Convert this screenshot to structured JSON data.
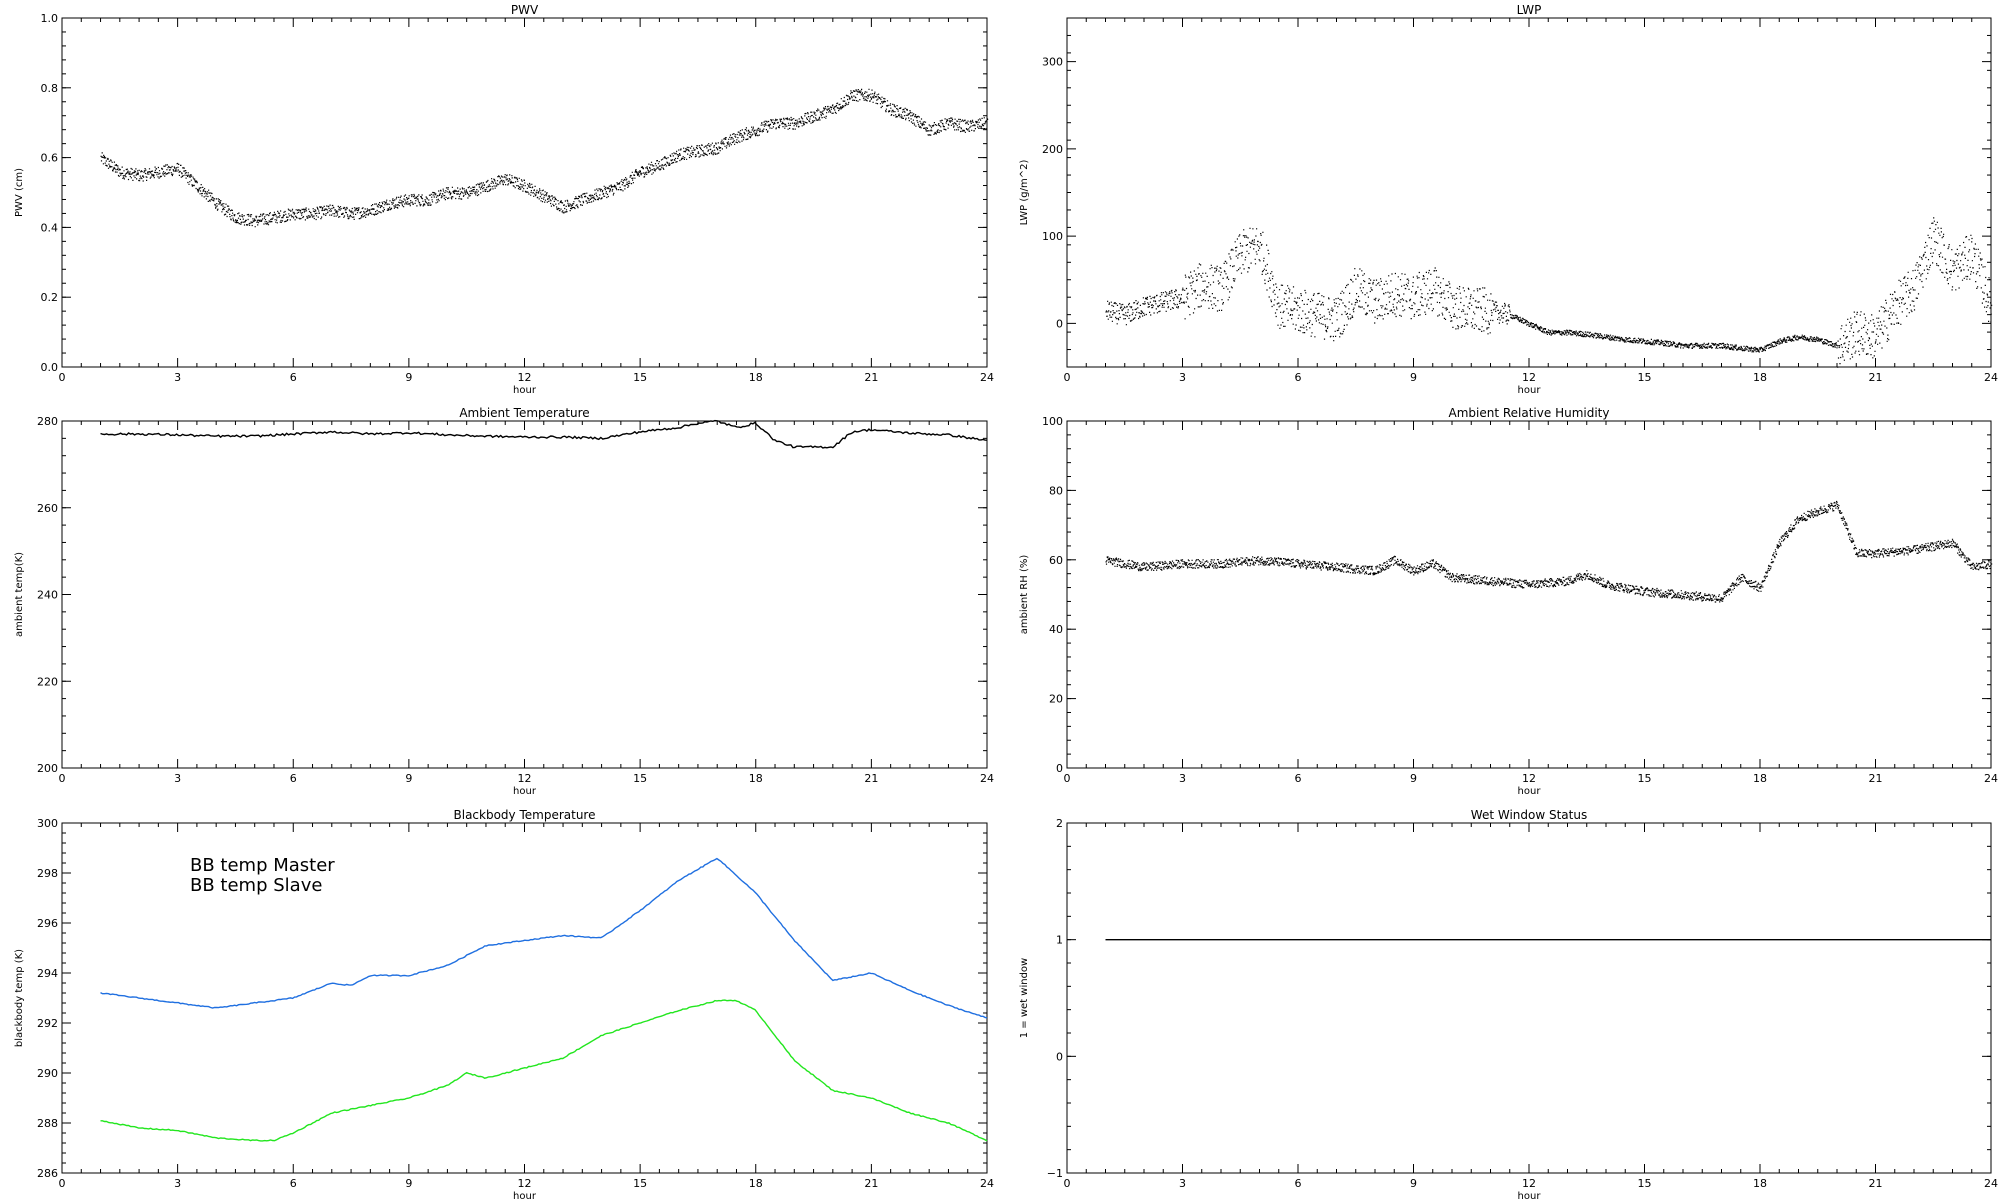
{
  "chart_data": [
    {
      "type": "line",
      "title": "PWV",
      "xlabel": "hour",
      "ylabel": "PWV (cm)",
      "xlim": [
        0,
        24
      ],
      "ylim": [
        0.0,
        1.0
      ],
      "xticks": [
        "0",
        "3",
        "6",
        "9",
        "12",
        "15",
        "18",
        "21",
        "24"
      ],
      "yticks": [
        "0.0",
        "0.2",
        "0.4",
        "0.6",
        "0.8",
        "1.0"
      ],
      "grid": false,
      "series": [
        {
          "color": "#000000",
          "style": "dense-points",
          "x": [
            1,
            1.5,
            2,
            2.5,
            3,
            3.5,
            4,
            4.5,
            5,
            5.5,
            6,
            6.5,
            7,
            7.5,
            8,
            8.5,
            9,
            9.5,
            10,
            10.5,
            11,
            11.5,
            12,
            12.5,
            13,
            13.5,
            14,
            14.5,
            15,
            15.5,
            16,
            16.5,
            17,
            17.5,
            18,
            18.5,
            19,
            19.5,
            20,
            20.5,
            21,
            21.5,
            22,
            22.5,
            23,
            23.5,
            24
          ],
          "y": [
            0.6,
            0.56,
            0.55,
            0.56,
            0.57,
            0.52,
            0.47,
            0.43,
            0.42,
            0.43,
            0.44,
            0.44,
            0.45,
            0.44,
            0.45,
            0.47,
            0.48,
            0.48,
            0.5,
            0.5,
            0.52,
            0.54,
            0.52,
            0.49,
            0.46,
            0.48,
            0.5,
            0.52,
            0.56,
            0.58,
            0.61,
            0.62,
            0.63,
            0.66,
            0.68,
            0.7,
            0.7,
            0.72,
            0.74,
            0.78,
            0.78,
            0.74,
            0.72,
            0.68,
            0.7,
            0.69,
            0.7
          ]
        }
      ]
    },
    {
      "type": "line",
      "title": "LWP",
      "xlabel": "hour",
      "ylabel": "LWP (g/m^2)",
      "xlim": [
        0,
        24
      ],
      "ylim": [
        -50,
        350
      ],
      "xticks": [
        "0",
        "3",
        "6",
        "9",
        "12",
        "15",
        "18",
        "21",
        "24"
      ],
      "yticks": [
        "0",
        "100",
        "200",
        "300"
      ],
      "grid": false,
      "series": [
        {
          "color": "#000000",
          "style": "dense-points",
          "x": [
            1,
            1.5,
            2,
            2.5,
            3,
            3.5,
            4,
            4.5,
            5,
            5.5,
            6,
            6.5,
            7,
            7.5,
            8,
            8.5,
            9,
            9.5,
            10,
            10.5,
            11,
            11.5,
            12,
            12.5,
            13,
            13.5,
            14,
            14.5,
            15,
            15.5,
            16,
            16.5,
            17,
            17.5,
            18,
            18.5,
            19,
            19.5,
            20,
            20.5,
            21,
            21.5,
            22,
            22.5,
            23,
            23.5,
            24
          ],
          "y": [
            15,
            10,
            20,
            25,
            30,
            45,
            40,
            80,
            90,
            20,
            15,
            10,
            5,
            40,
            25,
            35,
            30,
            40,
            20,
            15,
            15,
            10,
            0,
            -10,
            -10,
            -12,
            -15,
            -18,
            -20,
            -22,
            -25,
            -25,
            -25,
            -28,
            -30,
            -20,
            -15,
            -18,
            -25,
            -10,
            -15,
            20,
            40,
            100,
            60,
            80,
            20
          ]
        }
      ]
    },
    {
      "type": "line",
      "title": "Ambient Temperature",
      "xlabel": "hour",
      "ylabel": "ambient temp(K)",
      "xlim": [
        0,
        24
      ],
      "ylim": [
        200,
        280
      ],
      "xticks": [
        "0",
        "3",
        "6",
        "9",
        "12",
        "15",
        "18",
        "21",
        "24"
      ],
      "yticks": [
        "200",
        "220",
        "240",
        "260",
        "280"
      ],
      "grid": false,
      "series": [
        {
          "color": "#000000",
          "style": "line",
          "x": [
            1,
            2,
            3,
            4,
            5,
            6,
            7,
            8,
            9,
            10,
            11,
            12,
            13,
            14,
            15,
            16,
            16.5,
            17,
            17.5,
            18,
            18.5,
            19,
            20,
            20.5,
            21,
            22,
            23,
            24
          ],
          "y": [
            277,
            277,
            276.8,
            276.5,
            276.5,
            277,
            277.5,
            277,
            277.3,
            276.8,
            276.5,
            276.3,
            276.3,
            276,
            277.5,
            278.5,
            279.5,
            280,
            278.5,
            279.5,
            275.5,
            274,
            274,
            277.5,
            278,
            277.2,
            276.8,
            275.5
          ]
        }
      ]
    },
    {
      "type": "line",
      "title": "Ambient Relative Humidity",
      "xlabel": "hour",
      "ylabel": "ambient RH (%)",
      "xlim": [
        0,
        24
      ],
      "ylim": [
        0,
        100
      ],
      "xticks": [
        "0",
        "3",
        "6",
        "9",
        "12",
        "15",
        "18",
        "21",
        "24"
      ],
      "yticks": [
        "0",
        "20",
        "40",
        "60",
        "80",
        "100"
      ],
      "grid": false,
      "series": [
        {
          "color": "#000000",
          "style": "dense-points",
          "x": [
            1,
            2,
            3,
            4,
            5,
            6,
            7,
            8,
            8.5,
            9,
            9.5,
            10,
            11,
            12,
            13,
            13.5,
            14,
            15,
            16,
            17,
            17.5,
            18,
            18.5,
            19,
            19.5,
            20,
            20.5,
            21,
            22,
            23,
            23.5,
            24
          ],
          "y": [
            60,
            58,
            59,
            59,
            60,
            59,
            58,
            57,
            60,
            57,
            59,
            55,
            54,
            53,
            54,
            56,
            53,
            51,
            50,
            49,
            55,
            52,
            65,
            72,
            74,
            76,
            62,
            62,
            63,
            65,
            58,
            59
          ]
        }
      ]
    },
    {
      "type": "line",
      "title": "Blackbody Temperature",
      "xlabel": "hour",
      "ylabel": "blackbody temp (K)",
      "xlim": [
        0,
        24
      ],
      "ylim": [
        286,
        300
      ],
      "xticks": [
        "0",
        "3",
        "6",
        "9",
        "12",
        "15",
        "18",
        "21",
        "24"
      ],
      "yticks": [
        "286",
        "288",
        "290",
        "292",
        "294",
        "296",
        "298",
        "300"
      ],
      "grid": false,
      "legend": "top-left",
      "series": [
        {
          "name": "BB temp Master",
          "color": "#1f6fe0",
          "style": "line",
          "x": [
            1,
            2,
            3,
            4,
            5,
            6,
            7,
            7.5,
            8,
            9,
            10,
            11,
            12,
            13,
            14,
            15,
            16,
            17,
            18,
            19,
            20,
            21,
            22,
            23,
            24
          ],
          "y": [
            293.2,
            293.0,
            292.8,
            292.6,
            292.8,
            293.0,
            293.6,
            293.5,
            293.9,
            293.9,
            294.3,
            295.1,
            295.3,
            295.5,
            295.4,
            296.5,
            297.7,
            298.6,
            297.2,
            295.3,
            293.7,
            294.0,
            293.3,
            292.7,
            292.2
          ]
        },
        {
          "name": "BB temp Slave",
          "color": "#22e61e",
          "style": "line",
          "x": [
            1,
            2,
            3,
            4,
            5,
            5.5,
            6,
            7,
            8,
            9,
            10,
            10.5,
            11,
            12,
            13,
            14,
            15,
            16,
            17,
            17.5,
            18,
            19,
            20,
            21,
            22,
            23,
            24
          ],
          "y": [
            288.1,
            287.8,
            287.7,
            287.4,
            287.3,
            287.3,
            287.6,
            288.4,
            288.7,
            289.0,
            289.5,
            290.0,
            289.8,
            290.2,
            290.6,
            291.5,
            292.0,
            292.5,
            292.9,
            292.9,
            292.5,
            290.5,
            289.3,
            289.0,
            288.4,
            288.0,
            287.3
          ]
        }
      ]
    },
    {
      "type": "line",
      "title": "Wet Window Status",
      "xlabel": "hour",
      "ylabel": "1 = wet window",
      "xlim": [
        0,
        24
      ],
      "ylim": [
        -1,
        2
      ],
      "xticks": [
        "0",
        "3",
        "6",
        "9",
        "12",
        "15",
        "18",
        "21",
        "24"
      ],
      "yticks": [
        "−1",
        "0",
        "1",
        "2"
      ],
      "grid": false,
      "series": [
        {
          "color": "#000000",
          "style": "line",
          "x": [
            1,
            24
          ],
          "y": [
            1,
            1
          ]
        }
      ]
    }
  ]
}
